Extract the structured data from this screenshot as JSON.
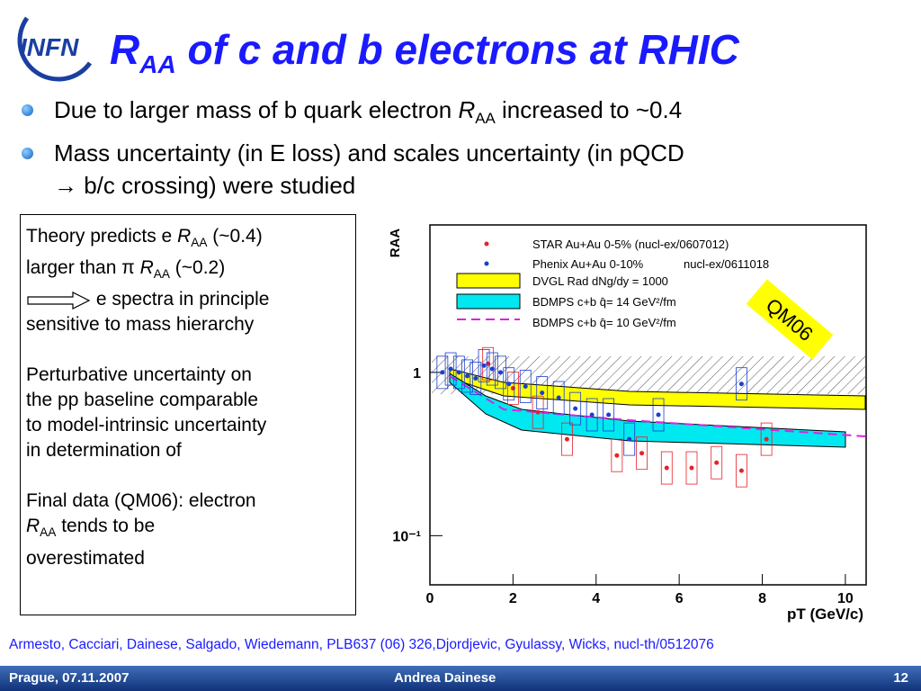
{
  "header": {
    "logo": "INFN",
    "title": [
      "R",
      "AA",
      " of c and b electrons at RHIC"
    ]
  },
  "bullets": [
    [
      "Due to larger mass of b quark electron ",
      "R",
      "AA",
      " increased to ~0.4"
    ],
    [
      "Mass uncertainty (in E loss) and scales uncertainty (in pQCD",
      "→ b/c crossing) were studied"
    ]
  ],
  "box": {
    "p1": [
      "Theory predicts e ",
      "R",
      "AA",
      " (~0.4)",
      "larger than π ",
      "R",
      "AA",
      " (~0.2)",
      "e spectra in principle",
      "sensitive to mass hierarchy"
    ],
    "p2": [
      "Perturbative uncertainty on",
      "the pp baseline comparable",
      "to model-intrinsic uncertainty",
      "in determination of"
    ],
    "p3": [
      "Final data (QM06): electron",
      "R",
      "AA",
      " tends to be",
      "overestimated"
    ]
  },
  "chart_data": {
    "type": "scatter",
    "y_label": "RAA",
    "x_label": "pT (GeV/c)",
    "xlim": [
      0,
      10.5
    ],
    "ylim": [
      0.05,
      8
    ],
    "log_y": true,
    "xticks": [
      0,
      2,
      4,
      6,
      8,
      10
    ],
    "yticks": [
      {
        "value": 0.1,
        "label": "10⁻¹"
      },
      1
    ],
    "series": [
      {
        "name": "STAR Au+Au 0-5% (nucl-ex/0607012)",
        "color": "#e8202a",
        "x": [
          1.4,
          2.0,
          2.6,
          3.3,
          4.5,
          5.1,
          5.7,
          6.3,
          6.9,
          7.5,
          8.1
        ],
        "values": [
          1.13,
          0.8,
          0.57,
          0.39,
          0.31,
          0.32,
          0.26,
          0.26,
          0.28,
          0.25,
          0.39
        ]
      },
      {
        "name": "Phenix Au+Au  0-10%",
        "color": "#1a3fd0",
        "x": [
          0.3,
          0.5,
          0.7,
          0.9,
          1.1,
          1.3,
          1.5,
          1.7,
          1.9,
          2.3,
          2.7,
          3.1,
          3.5,
          3.9,
          4.3,
          4.8,
          5.5,
          7.5
        ],
        "values": [
          1.0,
          1.05,
          1.0,
          0.95,
          0.92,
          1.1,
          1.05,
          1.0,
          0.85,
          0.82,
          0.75,
          0.7,
          0.6,
          0.55,
          0.55,
          0.39,
          0.55,
          0.85
        ]
      }
    ],
    "legend_ref": "nucl-ex/0611018",
    "theory": [
      "DVGL Rad dNg/dy = 1000",
      "BDMPS c+b q̂= 14 GeV²/fm",
      "BDMPS c+b q̂= 10 GeV²/fm"
    ]
  },
  "stamp": "QM06",
  "citation": "Armesto, Cacciari, Dainese, Salgado, Wiedemann, PLB637 (06) 326,Djordjevic, Gyulassy, Wicks, nucl-th/0512076",
  "footer": {
    "left": "Prague, 07.11.2007",
    "center": "Andrea Dainese",
    "right": "12"
  }
}
